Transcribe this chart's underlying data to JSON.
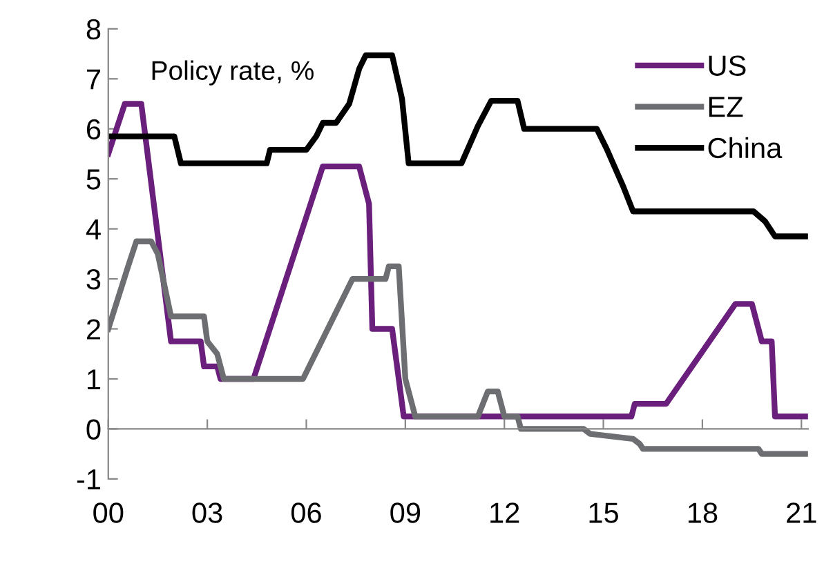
{
  "chart_data": {
    "type": "line",
    "annotations": [
      "Policy rate, %"
    ],
    "xlim": [
      0,
      21.2
    ],
    "ylim": [
      -1,
      8
    ],
    "xticks": [
      {
        "value": 0,
        "label": "00"
      },
      {
        "value": 3,
        "label": "03"
      },
      {
        "value": 6,
        "label": "06"
      },
      {
        "value": 9,
        "label": "09"
      },
      {
        "value": 12,
        "label": "12"
      },
      {
        "value": 15,
        "label": "15"
      },
      {
        "value": 18,
        "label": "18"
      },
      {
        "value": 21,
        "label": "21"
      }
    ],
    "yticks": [
      -1,
      0,
      1,
      2,
      3,
      4,
      5,
      6,
      7,
      8
    ],
    "grid": false,
    "legend": "top right",
    "marker": "none",
    "line_style": "solid",
    "series": [
      {
        "name": "US",
        "color": "#6b1f7c",
        "x": [
          0,
          0.5,
          1.0,
          1.9,
          2.8,
          2.9,
          3.3,
          3.4,
          4.4,
          6.5,
          7.6,
          7.9,
          8.0,
          8.6,
          8.95,
          15.85,
          15.95,
          16.9,
          19.0,
          19.5,
          19.8,
          20.1,
          20.2,
          21.2
        ],
        "values": [
          5.5,
          6.5,
          6.5,
          1.75,
          1.75,
          1.25,
          1.25,
          1.0,
          1.0,
          5.25,
          5.25,
          4.5,
          2.0,
          2.0,
          0.25,
          0.25,
          0.5,
          0.5,
          2.5,
          2.5,
          1.75,
          1.75,
          0.25,
          0.25
        ]
      },
      {
        "name": "EZ",
        "color": "#6d6e71",
        "x": [
          0,
          0.6,
          0.85,
          1.3,
          1.5,
          1.9,
          2.9,
          3.0,
          3.3,
          3.5,
          5.9,
          7.4,
          8.4,
          8.5,
          8.8,
          9.0,
          9.3,
          11.2,
          11.5,
          11.8,
          12.0,
          12.4,
          12.5,
          14.4,
          14.6,
          15.9,
          16.1,
          16.2,
          19.7,
          19.8,
          21.2
        ],
        "values": [
          2.0,
          3.25,
          3.75,
          3.75,
          3.5,
          2.25,
          2.25,
          1.75,
          1.5,
          1.0,
          1.0,
          3.0,
          3.0,
          3.25,
          3.25,
          1.0,
          0.25,
          0.25,
          0.75,
          0.75,
          0.25,
          0.25,
          0.0,
          0.0,
          -0.1,
          -0.2,
          -0.3,
          -0.4,
          -0.4,
          -0.5,
          -0.5
        ]
      },
      {
        "name": "China",
        "color": "#000000",
        "x": [
          0,
          2.0,
          2.2,
          4.8,
          4.9,
          6.0,
          6.3,
          6.5,
          6.9,
          7.3,
          7.6,
          7.8,
          8.6,
          8.9,
          9.1,
          10.7,
          11.2,
          11.6,
          12.4,
          12.6,
          14.8,
          15.1,
          15.6,
          15.9,
          19.55,
          19.9,
          20.2,
          21.2
        ],
        "values": [
          5.85,
          5.85,
          5.31,
          5.31,
          5.58,
          5.58,
          5.85,
          6.12,
          6.12,
          6.5,
          7.2,
          7.47,
          7.47,
          6.6,
          5.31,
          5.31,
          6.06,
          6.56,
          6.56,
          6.0,
          6.0,
          5.6,
          4.85,
          4.35,
          4.35,
          4.15,
          3.85,
          3.85
        ]
      }
    ]
  }
}
